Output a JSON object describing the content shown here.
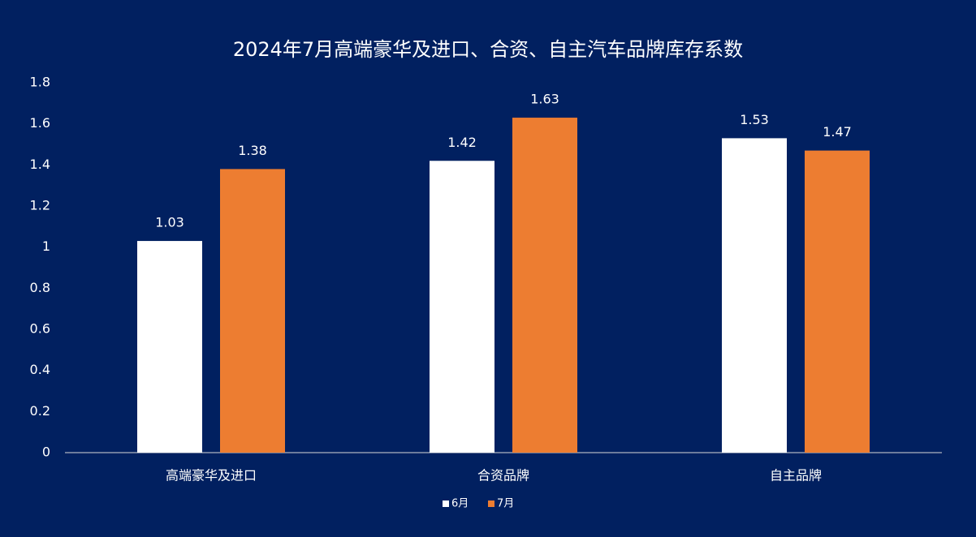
{
  "chart_data": {
    "type": "bar",
    "title": "2024年7月高端豪华及进口、合资、自主汽车品牌库存系数",
    "categories": [
      "高端豪华及进口",
      "合资品牌",
      "自主品牌"
    ],
    "series": [
      {
        "name": "6月",
        "color": "#ffffff",
        "values": [
          1.03,
          1.42,
          1.53
        ]
      },
      {
        "name": "7月",
        "color": "#ed7d31",
        "values": [
          1.38,
          1.63,
          1.47
        ]
      }
    ],
    "ylim": [
      0,
      1.8
    ],
    "yticks": [
      0,
      0.2,
      0.4,
      0.6,
      0.8,
      1,
      1.2,
      1.4,
      1.6,
      1.8
    ],
    "grid": false,
    "legend": "bottom"
  }
}
